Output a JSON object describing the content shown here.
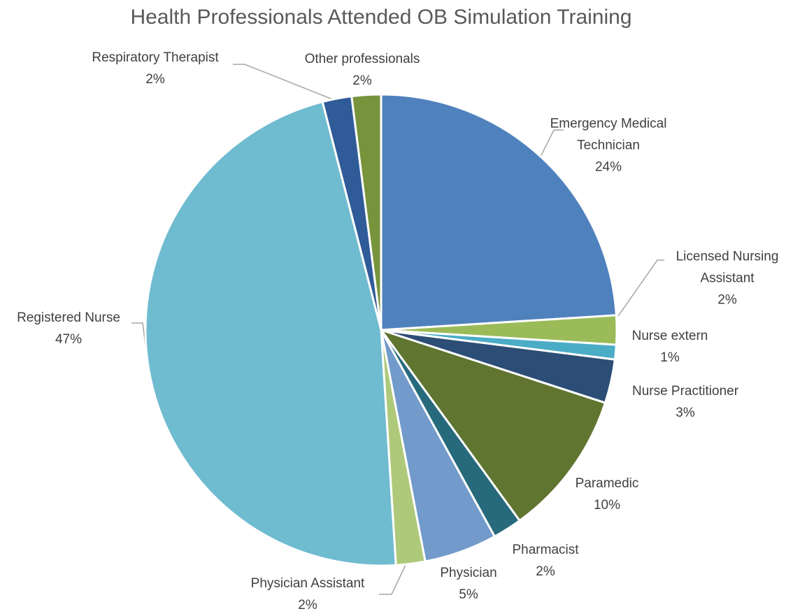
{
  "chart_data": {
    "type": "pie",
    "title": "Health Professionals Attended OB Simulation Training",
    "categories": [
      "Emergency Medical Technician",
      "Licensed Nursing Assistant",
      "Nurse extern",
      "Nurse Practitioner",
      "Paramedic",
      "Pharmacist",
      "Physician",
      "Physician Assistant",
      "Registered Nurse",
      "Respiratory Therapist",
      "Other professionals"
    ],
    "values": [
      24,
      2,
      1,
      3,
      10,
      2,
      5,
      2,
      47,
      2,
      2
    ],
    "value_labels": [
      "24%",
      "2%",
      "1%",
      "3%",
      "10%",
      "2%",
      "5%",
      "2%",
      "47%",
      "2%",
      "2%"
    ],
    "colors": [
      "#4f81bd",
      "#9bbb59",
      "#4bacc6",
      "#2c4d75",
      "#5f7530",
      "#276a7c",
      "#729aca",
      "#afc97a",
      "#6fbbd0",
      "#2f5b98",
      "#77933c"
    ]
  }
}
